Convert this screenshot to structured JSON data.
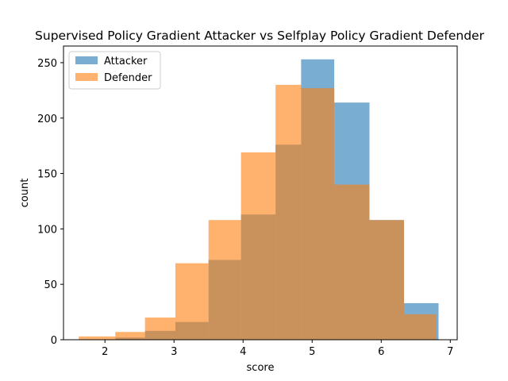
{
  "chart_data": {
    "type": "histogram",
    "title": "Supervised Policy Gradient Attacker vs Selfplay Policy Gradient Defender",
    "xlabel": "score",
    "ylabel": "count",
    "xlim": [
      1.4,
      7.1
    ],
    "ylim": [
      0,
      265
    ],
    "xticks": [
      2,
      3,
      4,
      5,
      6,
      7
    ],
    "yticks": [
      0,
      50,
      100,
      150,
      200,
      250
    ],
    "grid": false,
    "legend_position": "top-left",
    "series": [
      {
        "name": "Attacker",
        "color": "#1f77b4",
        "opacity": 0.6,
        "bins": [
          [
            2.15,
            2.58,
            2
          ],
          [
            2.58,
            3.02,
            8
          ],
          [
            3.02,
            3.5,
            16
          ],
          [
            3.5,
            3.97,
            72
          ],
          [
            3.97,
            4.47,
            113
          ],
          [
            4.47,
            4.84,
            176
          ],
          [
            4.84,
            5.32,
            253
          ],
          [
            5.32,
            5.83,
            214
          ],
          [
            5.83,
            6.33,
            108
          ],
          [
            6.33,
            6.83,
            33
          ]
        ]
      },
      {
        "name": "Defender",
        "color": "#ff7f0e",
        "opacity": 0.6,
        "bins": [
          [
            1.62,
            2.15,
            3
          ],
          [
            2.15,
            2.58,
            7
          ],
          [
            2.58,
            3.02,
            20
          ],
          [
            3.02,
            3.5,
            69
          ],
          [
            3.5,
            3.97,
            108
          ],
          [
            3.97,
            4.47,
            169
          ],
          [
            4.47,
            4.84,
            230
          ],
          [
            4.84,
            5.32,
            227
          ],
          [
            5.32,
            5.83,
            140
          ],
          [
            5.83,
            6.33,
            108
          ],
          [
            6.33,
            6.8,
            23
          ]
        ]
      }
    ]
  }
}
